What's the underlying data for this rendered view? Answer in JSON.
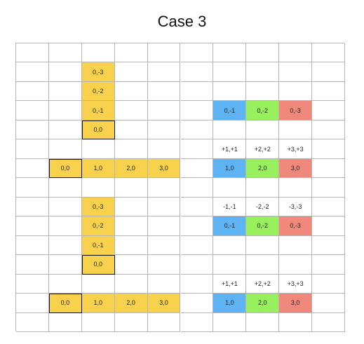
{
  "title": "Case 3",
  "colors": {
    "yellow": "#f8d24c",
    "blue": "#5eb3f5",
    "green": "#97f05c",
    "red": "#f1887c",
    "grid_line": "#b5b5b5",
    "highlight_border": "#111111"
  },
  "grid": {
    "columns": 10,
    "rows": 15
  },
  "cells": [
    {
      "row": 1,
      "col": 2,
      "text": "0,-3",
      "color": "yellow"
    },
    {
      "row": 2,
      "col": 2,
      "text": "0,-2",
      "color": "yellow"
    },
    {
      "row": 3,
      "col": 2,
      "text": "0,-1",
      "color": "yellow"
    },
    {
      "row": 4,
      "col": 2,
      "text": "0,0",
      "color": "yellow",
      "highlight": true
    },
    {
      "row": 3,
      "col": 6,
      "text": "0,-1",
      "color": "blue"
    },
    {
      "row": 3,
      "col": 7,
      "text": "0,-2",
      "color": "green"
    },
    {
      "row": 3,
      "col": 8,
      "text": "0,-3",
      "color": "red"
    },
    {
      "row": 5,
      "col": 6,
      "text": "+1,+1"
    },
    {
      "row": 5,
      "col": 7,
      "text": "+2,+2"
    },
    {
      "row": 5,
      "col": 8,
      "text": "+3,+3"
    },
    {
      "row": 6,
      "col": 1,
      "text": "0,0",
      "color": "yellow",
      "highlight": true
    },
    {
      "row": 6,
      "col": 2,
      "text": "1,0",
      "color": "yellow"
    },
    {
      "row": 6,
      "col": 3,
      "text": "2,0",
      "color": "yellow"
    },
    {
      "row": 6,
      "col": 4,
      "text": "3,0",
      "color": "yellow"
    },
    {
      "row": 6,
      "col": 6,
      "text": "1,0",
      "color": "blue"
    },
    {
      "row": 6,
      "col": 7,
      "text": "2,0",
      "color": "green"
    },
    {
      "row": 6,
      "col": 8,
      "text": "3,0",
      "color": "red"
    },
    {
      "row": 8,
      "col": 2,
      "text": "0,-3",
      "color": "yellow"
    },
    {
      "row": 8,
      "col": 6,
      "text": "-1,-1"
    },
    {
      "row": 8,
      "col": 7,
      "text": "-2,-2"
    },
    {
      "row": 8,
      "col": 8,
      "text": "-3,-3"
    },
    {
      "row": 9,
      "col": 2,
      "text": "0,-2",
      "color": "yellow"
    },
    {
      "row": 9,
      "col": 6,
      "text": "0,-1",
      "color": "blue"
    },
    {
      "row": 9,
      "col": 7,
      "text": "0,-2",
      "color": "green"
    },
    {
      "row": 9,
      "col": 8,
      "text": "0,-3",
      "color": "red"
    },
    {
      "row": 10,
      "col": 2,
      "text": "0,-1",
      "color": "yellow"
    },
    {
      "row": 11,
      "col": 2,
      "text": "0,0",
      "color": "yellow",
      "highlight": true
    },
    {
      "row": 12,
      "col": 6,
      "text": "+1,+1"
    },
    {
      "row": 12,
      "col": 7,
      "text": "+2,+2"
    },
    {
      "row": 12,
      "col": 8,
      "text": "+3,+3"
    },
    {
      "row": 13,
      "col": 1,
      "text": "0,0",
      "color": "yellow",
      "highlight": true
    },
    {
      "row": 13,
      "col": 2,
      "text": "1,0",
      "color": "yellow"
    },
    {
      "row": 13,
      "col": 3,
      "text": "2,0",
      "color": "yellow"
    },
    {
      "row": 13,
      "col": 4,
      "text": "3,0",
      "color": "yellow"
    },
    {
      "row": 13,
      "col": 6,
      "text": "1,0",
      "color": "blue"
    },
    {
      "row": 13,
      "col": 7,
      "text": "2,0",
      "color": "green"
    },
    {
      "row": 13,
      "col": 8,
      "text": "3,0",
      "color": "red"
    }
  ]
}
